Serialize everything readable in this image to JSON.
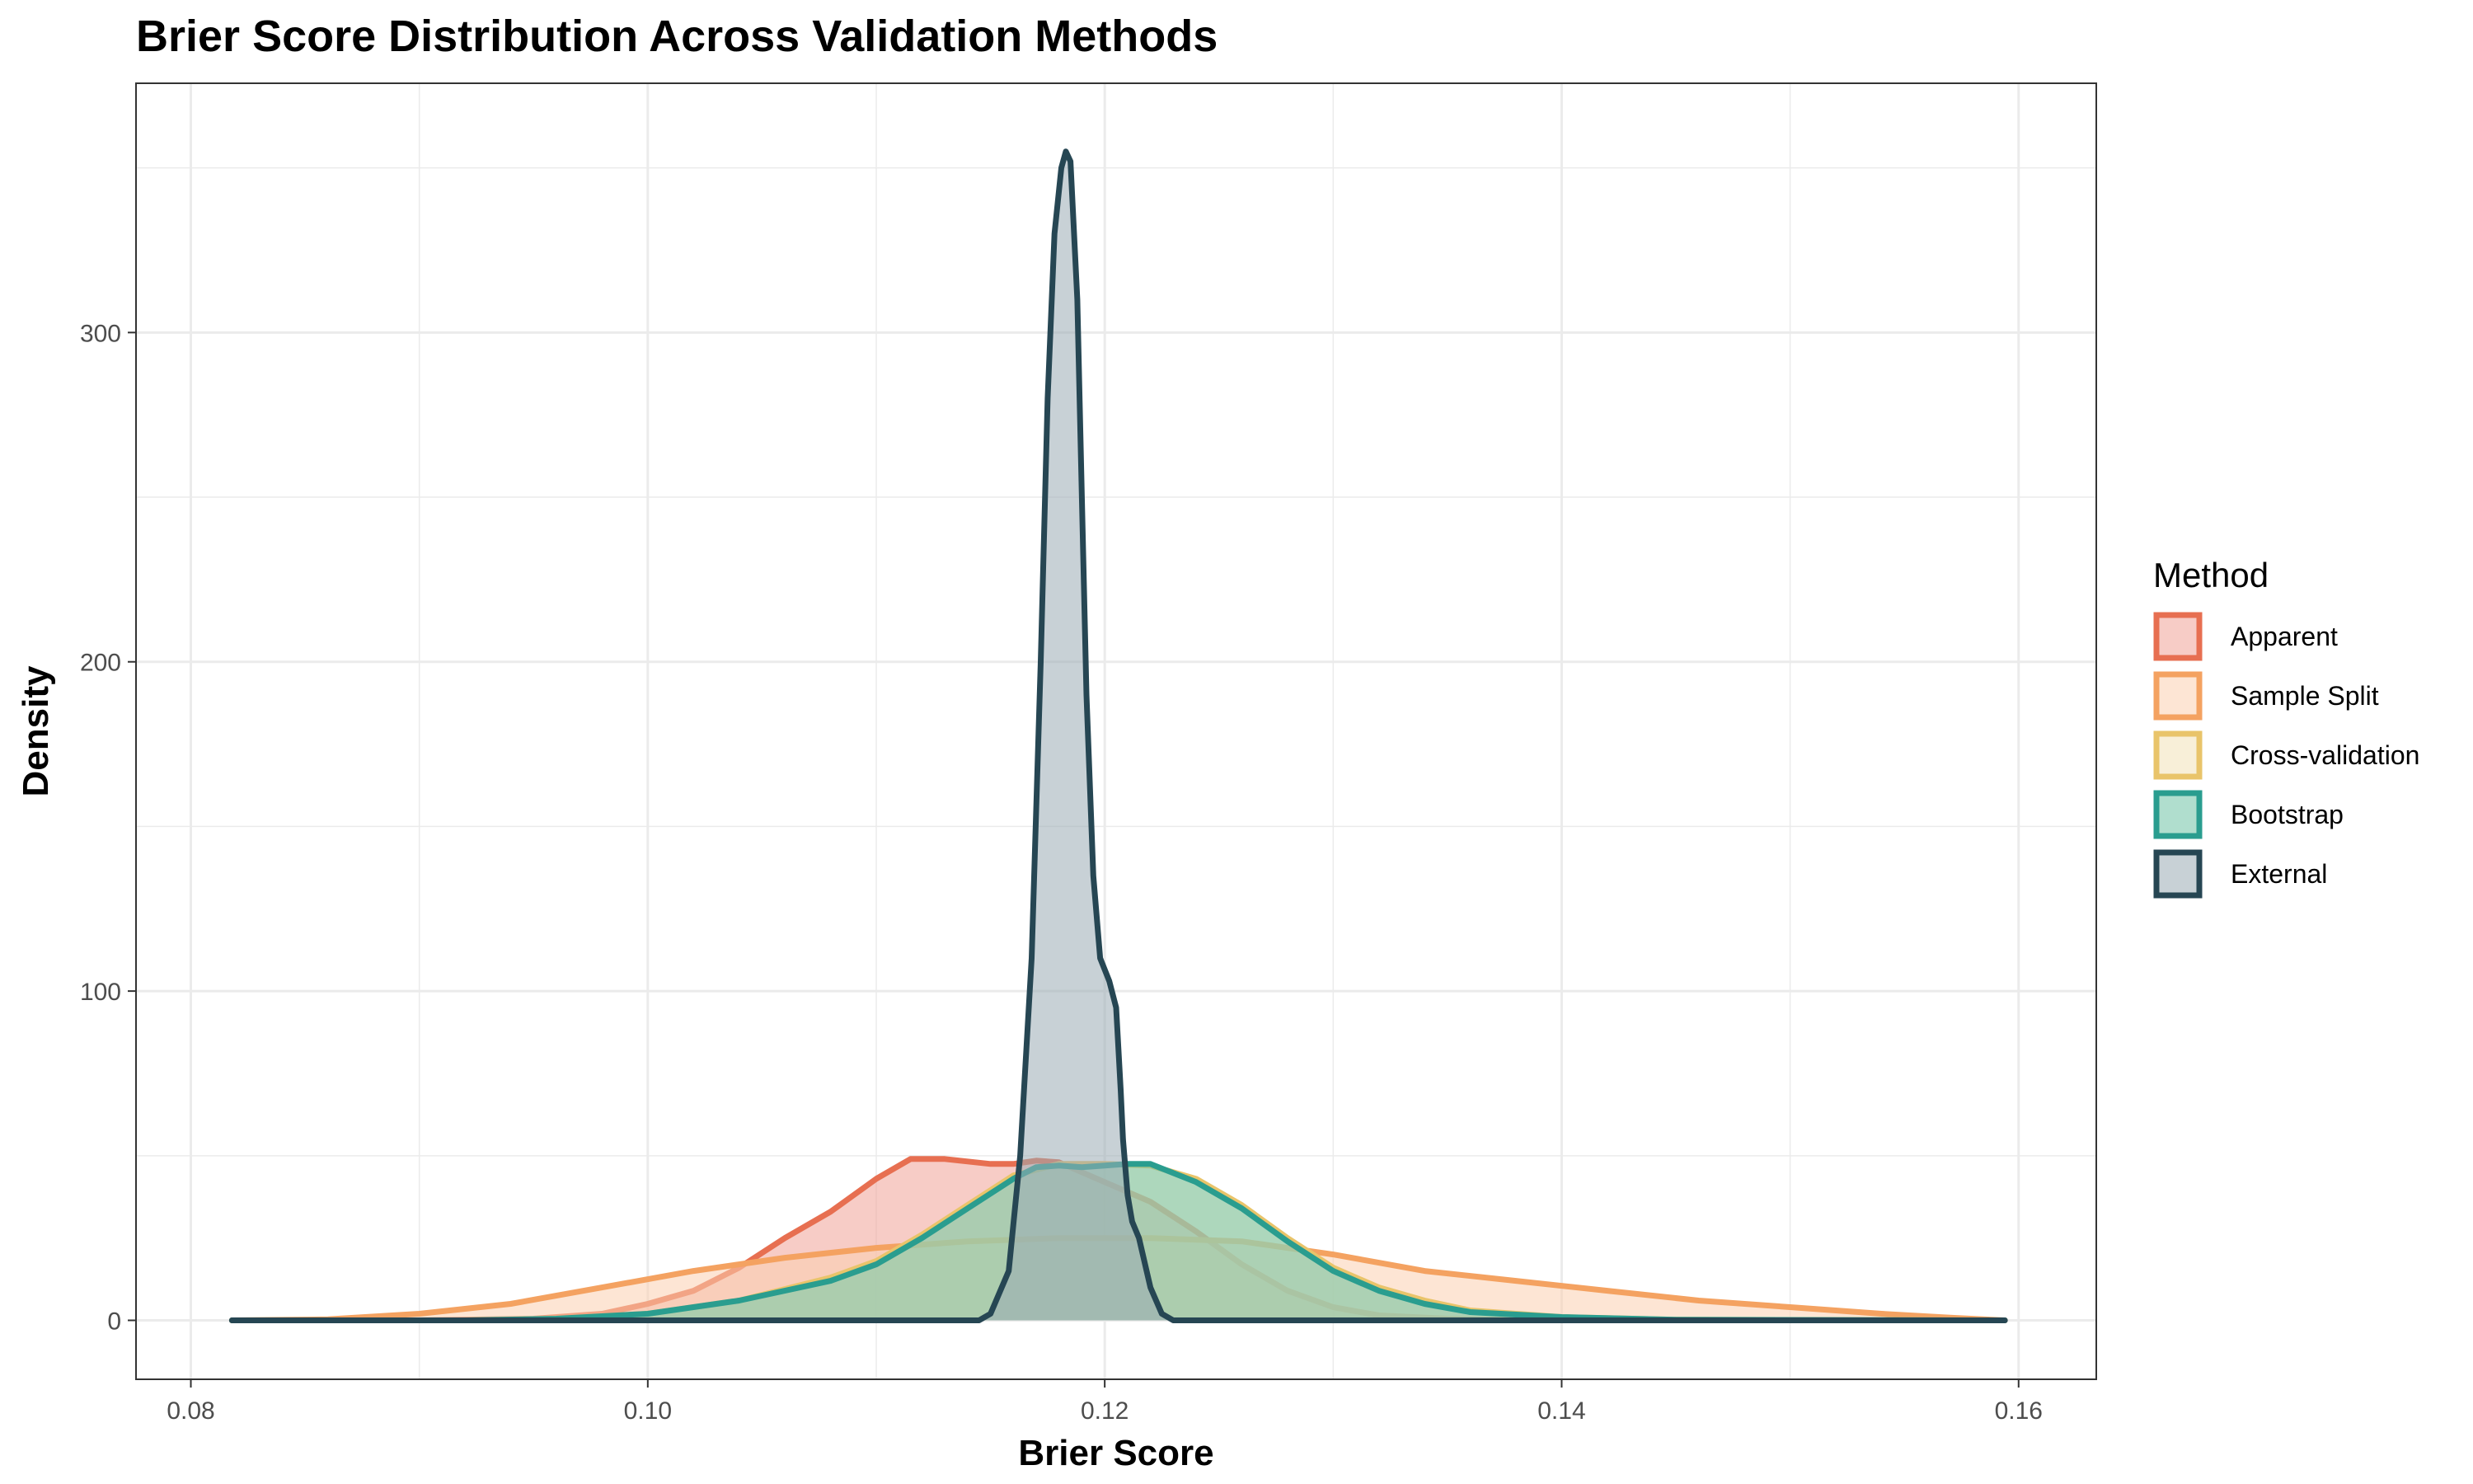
{
  "chart_data": {
    "type": "area",
    "subtype": "density",
    "title": "Brier Score Distribution Across Validation Methods",
    "xlabel": "Brier Score",
    "ylabel": "Density",
    "xlim": [
      0.0776,
      0.1634
    ],
    "ylim": [
      -17.9,
      375.7
    ],
    "x_ticks": [
      0.08,
      0.1,
      0.12,
      0.14,
      0.16
    ],
    "x_tick_labels": [
      "0.08",
      "0.10",
      "0.12",
      "0.14",
      "0.16"
    ],
    "y_ticks": [
      0,
      100,
      200,
      300
    ],
    "y_tick_labels": [
      "0",
      "100",
      "200",
      "300"
    ],
    "grid": true,
    "legend": {
      "title": "Method",
      "placement": "right"
    },
    "series": [
      {
        "name": "Apparent",
        "line_color": "#E76F51",
        "fill_color": "#F1A398",
        "points": [
          [
            0.0818,
            0
          ],
          [
            0.09,
            0
          ],
          [
            0.095,
            0.5
          ],
          [
            0.098,
            2
          ],
          [
            0.1,
            5
          ],
          [
            0.102,
            9
          ],
          [
            0.104,
            16
          ],
          [
            0.106,
            25
          ],
          [
            0.108,
            33
          ],
          [
            0.11,
            43
          ],
          [
            0.111,
            47
          ],
          [
            0.1115,
            49
          ],
          [
            0.113,
            49
          ],
          [
            0.115,
            47.5
          ],
          [
            0.116,
            47.5
          ],
          [
            0.117,
            48.5
          ],
          [
            0.118,
            48
          ],
          [
            0.119,
            45
          ],
          [
            0.12,
            42
          ],
          [
            0.122,
            36
          ],
          [
            0.124,
            27
          ],
          [
            0.126,
            17
          ],
          [
            0.128,
            9
          ],
          [
            0.13,
            4
          ],
          [
            0.132,
            1.5
          ],
          [
            0.135,
            0.5
          ],
          [
            0.14,
            0
          ],
          [
            0.1594,
            0
          ]
        ]
      },
      {
        "name": "Sample Split",
        "line_color": "#F4A261",
        "fill_color": "#FBD0B0",
        "points": [
          [
            0.0818,
            0
          ],
          [
            0.086,
            0.3
          ],
          [
            0.09,
            2
          ],
          [
            0.094,
            5
          ],
          [
            0.098,
            10
          ],
          [
            0.102,
            15
          ],
          [
            0.106,
            19
          ],
          [
            0.11,
            22
          ],
          [
            0.114,
            24
          ],
          [
            0.118,
            25
          ],
          [
            0.122,
            25
          ],
          [
            0.126,
            24
          ],
          [
            0.13,
            20
          ],
          [
            0.134,
            15
          ],
          [
            0.138,
            12
          ],
          [
            0.142,
            9
          ],
          [
            0.146,
            6
          ],
          [
            0.15,
            4
          ],
          [
            0.154,
            2
          ],
          [
            0.157,
            0.8
          ],
          [
            0.1594,
            0
          ]
        ]
      },
      {
        "name": "Cross-validation",
        "line_color": "#E9C46A",
        "fill_color": "#F3E2B8",
        "points": [
          [
            0.0818,
            0
          ],
          [
            0.092,
            0
          ],
          [
            0.096,
            0.5
          ],
          [
            0.1,
            2
          ],
          [
            0.104,
            6
          ],
          [
            0.108,
            13
          ],
          [
            0.11,
            18
          ],
          [
            0.112,
            26
          ],
          [
            0.114,
            35
          ],
          [
            0.116,
            44
          ],
          [
            0.118,
            47.5
          ],
          [
            0.12,
            47.5
          ],
          [
            0.122,
            47
          ],
          [
            0.124,
            43
          ],
          [
            0.126,
            35
          ],
          [
            0.128,
            25
          ],
          [
            0.13,
            16
          ],
          [
            0.132,
            10
          ],
          [
            0.134,
            6
          ],
          [
            0.136,
            3
          ],
          [
            0.14,
            1
          ],
          [
            0.145,
            0.2
          ],
          [
            0.1594,
            0
          ]
        ]
      },
      {
        "name": "Bootstrap",
        "line_color": "#2A9D8F",
        "fill_color": "#6FC2A5",
        "points": [
          [
            0.0818,
            0
          ],
          [
            0.092,
            0
          ],
          [
            0.096,
            0.5
          ],
          [
            0.1,
            2
          ],
          [
            0.104,
            6
          ],
          [
            0.108,
            12
          ],
          [
            0.11,
            17
          ],
          [
            0.112,
            25
          ],
          [
            0.114,
            34
          ],
          [
            0.116,
            43
          ],
          [
            0.117,
            46.5
          ],
          [
            0.118,
            47
          ],
          [
            0.119,
            46.5
          ],
          [
            0.12,
            47
          ],
          [
            0.121,
            47.5
          ],
          [
            0.122,
            47.5
          ],
          [
            0.124,
            42
          ],
          [
            0.126,
            34
          ],
          [
            0.128,
            24
          ],
          [
            0.13,
            15
          ],
          [
            0.132,
            9
          ],
          [
            0.134,
            5
          ],
          [
            0.136,
            2.5
          ],
          [
            0.14,
            1
          ],
          [
            0.145,
            0.2
          ],
          [
            0.1594,
            0
          ]
        ]
      },
      {
        "name": "External",
        "line_color": "#264653",
        "fill_color": "#9AABB5",
        "points": [
          [
            0.0818,
            0
          ],
          [
            0.1145,
            0
          ],
          [
            0.115,
            2
          ],
          [
            0.1158,
            15
          ],
          [
            0.1163,
            50
          ],
          [
            0.1168,
            110
          ],
          [
            0.1172,
            200
          ],
          [
            0.1175,
            280
          ],
          [
            0.1178,
            330
          ],
          [
            0.1181,
            350
          ],
          [
            0.1183,
            355
          ],
          [
            0.1185,
            352
          ],
          [
            0.1188,
            310
          ],
          [
            0.119,
            250
          ],
          [
            0.1192,
            190
          ],
          [
            0.1195,
            135
          ],
          [
            0.1198,
            110
          ],
          [
            0.1202,
            103
          ],
          [
            0.1205,
            95
          ],
          [
            0.1207,
            70
          ],
          [
            0.1208,
            55
          ],
          [
            0.121,
            38
          ],
          [
            0.1212,
            30
          ],
          [
            0.1215,
            25
          ],
          [
            0.122,
            10
          ],
          [
            0.1225,
            2
          ],
          [
            0.123,
            0
          ],
          [
            0.1594,
            0
          ]
        ]
      }
    ]
  }
}
